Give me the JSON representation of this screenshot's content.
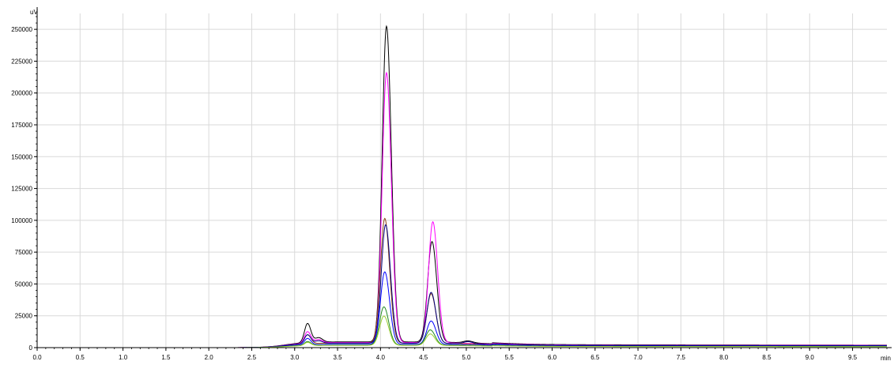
{
  "chart_data": {
    "type": "line",
    "ylabel": "uV",
    "xlabel": "min",
    "xlim": [
      0,
      9.9
    ],
    "ylim": [
      0,
      262500
    ],
    "xticks": [
      "0.0",
      "0.5",
      "1.0",
      "1.5",
      "2.0",
      "2.5",
      "3.0",
      "3.5",
      "4.0",
      "4.5",
      "5.0",
      "5.5",
      "6.0",
      "6.5",
      "7.0",
      "7.5",
      "8.0",
      "8.5",
      "9.0",
      "9.5"
    ],
    "yticks": [
      "0",
      "25000",
      "50000",
      "75000",
      "100000",
      "125000",
      "150000",
      "175000",
      "200000",
      "225000",
      "250000"
    ],
    "grid": true,
    "legend": "none",
    "series": [
      {
        "color": "#000000",
        "peaks": [
          [
            3.15,
            15000,
            0.035
          ],
          [
            3.28,
            3500,
            0.04
          ],
          [
            4.07,
            248000,
            0.05
          ],
          [
            4.6,
            79000,
            0.05
          ],
          [
            5.02,
            1500,
            0.05
          ]
        ],
        "baseline": 4500
      },
      {
        "color": "#ff00ff",
        "peaks": [
          [
            3.15,
            9000,
            0.035
          ],
          [
            3.28,
            2500,
            0.04
          ],
          [
            4.07,
            212000,
            0.05
          ],
          [
            4.61,
            95000,
            0.05
          ]
        ],
        "baseline": 4000
      },
      {
        "color": "#8b4513",
        "peaks": [
          [
            3.15,
            7000,
            0.035
          ],
          [
            4.05,
            98000,
            0.05
          ],
          [
            4.59,
            39000,
            0.05
          ]
        ],
        "baseline": 3500
      },
      {
        "color": "#000080",
        "peaks": [
          [
            3.15,
            7000,
            0.035
          ],
          [
            3.28,
            2000,
            0.04
          ],
          [
            4.06,
            93000,
            0.05
          ],
          [
            4.59,
            40000,
            0.05
          ],
          [
            5.02,
            1800,
            0.05
          ]
        ],
        "baseline": 3500
      },
      {
        "color": "#0000ff",
        "peaks": [
          [
            3.15,
            5000,
            0.035
          ],
          [
            4.05,
            57000,
            0.05
          ],
          [
            4.59,
            18500,
            0.05
          ]
        ],
        "baseline": 2500
      },
      {
        "color": "#228b22",
        "peaks": [
          [
            3.15,
            3000,
            0.035
          ],
          [
            4.04,
            30000,
            0.05
          ],
          [
            4.58,
            12000,
            0.05
          ]
        ],
        "baseline": 2000
      },
      {
        "color": "#9acd32",
        "peaks": [
          [
            3.15,
            2500,
            0.035
          ],
          [
            4.04,
            23000,
            0.05
          ],
          [
            4.58,
            9000,
            0.05
          ]
        ],
        "baseline": 1800
      }
    ]
  }
}
